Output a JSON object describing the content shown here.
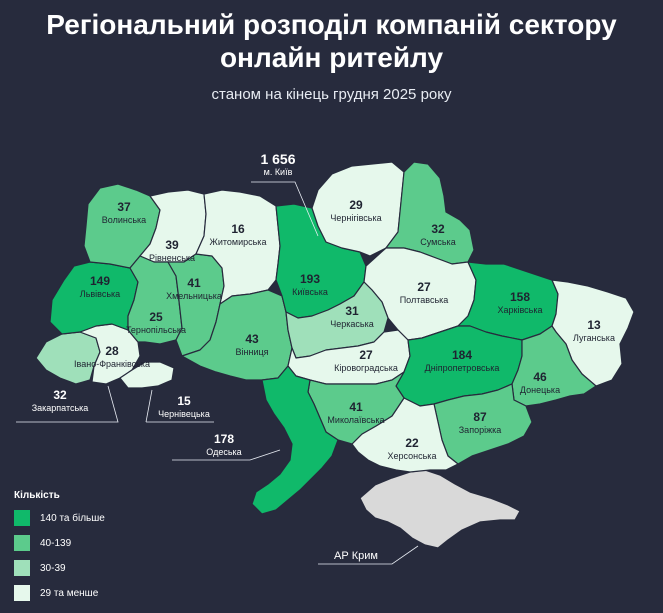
{
  "title_line1": "Регіональний розподіл компаній сектору",
  "title_line2": "онлайн ритейлу",
  "subtitle": "станом на кінець грудня 2025 року",
  "colors": {
    "background": "#272b3d",
    "tier_high": "#10b96a",
    "tier_mid": "#5ccb8c",
    "tier_low": "#9fe0ba",
    "tier_min": "#e6f8ec",
    "crimea": "#d9d9d9"
  },
  "regions": {
    "kyiv_city": {
      "value": "1 656",
      "name": "м. Київ"
    },
    "volynska": {
      "value": "37",
      "name": "Волинська"
    },
    "rivnenska": {
      "value": "39",
      "name": "Рівненська"
    },
    "zhytomyrska": {
      "value": "16",
      "name": "Житомирська"
    },
    "chernihivska": {
      "value": "29",
      "name": "Чернігівська"
    },
    "sumska": {
      "value": "32",
      "name": "Сумська"
    },
    "lvivska": {
      "value": "149",
      "name": "Львівська"
    },
    "khmelnytska": {
      "value": "41",
      "name": "Хмельницька"
    },
    "kyivska": {
      "value": "193",
      "name": "Київська"
    },
    "poltavska": {
      "value": "27",
      "name": "Полтавська"
    },
    "kharkivska": {
      "value": "158",
      "name": "Харківська"
    },
    "luhanska": {
      "value": "13",
      "name": "Луганська"
    },
    "ternopilska": {
      "value": "25",
      "name": "Тернопільська"
    },
    "cherkaska": {
      "value": "31",
      "name": "Черкаська"
    },
    "vinnytska": {
      "value": "43",
      "name": "Вінниця"
    },
    "ivano_frankivska": {
      "value": "28",
      "name": "Івано-Франківська"
    },
    "kirovohradska": {
      "value": "27",
      "name": "Кіровоградська"
    },
    "dnipropetrovska": {
      "value": "184",
      "name": "Дніпропетровська"
    },
    "donetska": {
      "value": "46",
      "name": "Донецька"
    },
    "zakarpatska": {
      "value": "32",
      "name": "Закарпатська"
    },
    "chernivetska": {
      "value": "15",
      "name": "Чернівецька"
    },
    "mykolaivska": {
      "value": "41",
      "name": "Миколаївська"
    },
    "zaporizka": {
      "value": "87",
      "name": "Запоріжка"
    },
    "odeska": {
      "value": "178",
      "name": "Одеська"
    },
    "khersonska": {
      "value": "22",
      "name": "Херсонська"
    },
    "crimea": {
      "name": "АР Крим"
    }
  },
  "legend": {
    "title": "Кількість",
    "items": [
      {
        "label": "140 та більше",
        "color": "#10b96a"
      },
      {
        "label": "40-139",
        "color": "#5ccb8c"
      },
      {
        "label": "30-39",
        "color": "#9fe0ba"
      },
      {
        "label": "29 та менше",
        "color": "#e6f8ec"
      }
    ]
  }
}
